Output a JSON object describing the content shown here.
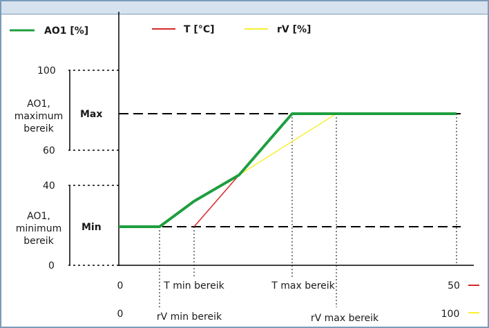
{
  "legend": [
    {
      "label": "AO1 [%]",
      "color": "#1e9e3e"
    },
    {
      "label": "T [°C]",
      "color": "#d62728"
    },
    {
      "label": "rV [%]",
      "color": "#f5f032"
    }
  ],
  "y_axis": {
    "ticks": [
      "100",
      "60",
      "40",
      "0"
    ],
    "max_label": "Max",
    "min_label": "Min",
    "max_range_label": [
      "AO1,",
      "maximum",
      "bereik"
    ],
    "min_range_label": [
      "AO1,",
      "minimum",
      "bereik"
    ]
  },
  "x_axis_T": {
    "start": "0",
    "min_label": "T min bereik",
    "max_label": "T max bereik",
    "end": "50",
    "marker_color": "#d62728"
  },
  "x_axis_rV": {
    "start": "0",
    "min_label": "rV min bereik",
    "max_label": "rV max bereik",
    "end": "100",
    "marker_color": "#f5f032"
  }
}
